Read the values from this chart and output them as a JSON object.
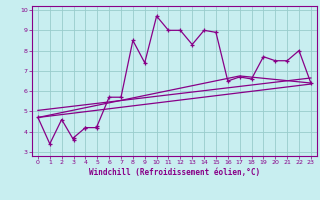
{
  "xlabel": "Windchill (Refroidissement éolien,°C)",
  "bg_color": "#c8eef0",
  "line_color": "#880088",
  "grid_color": "#99cccc",
  "axis_color": "#880088",
  "xlim": [
    -0.5,
    23.5
  ],
  "ylim": [
    2.8,
    10.2
  ],
  "xticks": [
    0,
    1,
    2,
    3,
    4,
    5,
    6,
    7,
    8,
    9,
    10,
    11,
    12,
    13,
    14,
    15,
    16,
    17,
    18,
    19,
    20,
    21,
    22,
    23
  ],
  "yticks": [
    3,
    4,
    5,
    6,
    7,
    8,
    9,
    10
  ],
  "series1_x": [
    0,
    1,
    2,
    3,
    3,
    4,
    4,
    5,
    5,
    6,
    7,
    8,
    9,
    10,
    11,
    12,
    13,
    14,
    15,
    16,
    17,
    18,
    19,
    20,
    21,
    22,
    23
  ],
  "series1_y": [
    4.7,
    3.4,
    4.6,
    3.6,
    3.7,
    4.2,
    4.2,
    4.2,
    4.3,
    5.7,
    5.7,
    8.5,
    7.4,
    9.7,
    9.0,
    9.0,
    8.3,
    9.0,
    8.9,
    6.5,
    6.7,
    6.6,
    7.7,
    7.5,
    7.5,
    8.0,
    6.4
  ],
  "series2_x": [
    0,
    23
  ],
  "series2_y": [
    4.7,
    6.35
  ],
  "series3_x": [
    0,
    23
  ],
  "series3_y": [
    5.05,
    6.65
  ],
  "series4_x": [
    0,
    17,
    23
  ],
  "series4_y": [
    4.7,
    6.75,
    6.4
  ]
}
